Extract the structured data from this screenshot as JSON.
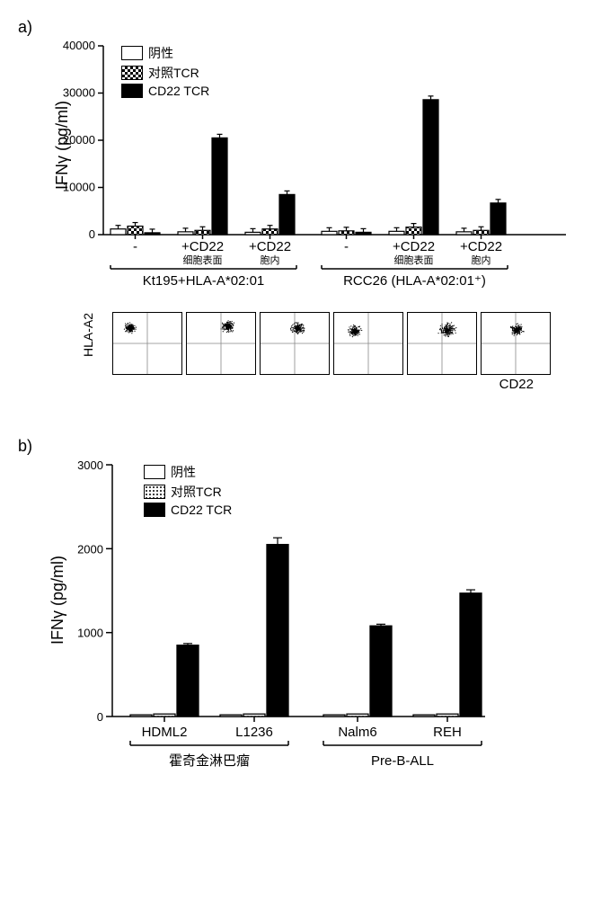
{
  "panel_a": {
    "label": "a)",
    "ylabel": "IFNγ (pg/ml)",
    "ylim": [
      0,
      40000
    ],
    "ytick_step": 10000,
    "yticks": [
      0,
      10000,
      20000,
      30000,
      40000
    ],
    "legend": {
      "neg": "阴性",
      "ctrl": "对照TCR",
      "cd22": "CD22 TCR"
    },
    "groups": [
      {
        "id": "kt195",
        "label": "Kt195+HLA-A*02:01",
        "conditions": [
          {
            "label": "-",
            "sub": "",
            "bars": [
              1200,
              1800,
              400
            ]
          },
          {
            "label": "+CD22",
            "sub": "细胞表面",
            "bars": [
              600,
              900,
              20500
            ]
          },
          {
            "label": "+CD22",
            "sub": "胞内",
            "bars": [
              500,
              1200,
              8500
            ]
          }
        ]
      },
      {
        "id": "rcc26",
        "label": "RCC26 (HLA-A*02:01⁺)",
        "conditions": [
          {
            "label": "-",
            "sub": "",
            "bars": [
              700,
              800,
              500
            ]
          },
          {
            "label": "+CD22",
            "sub": "细胞表面",
            "bars": [
              700,
              1600,
              28600
            ]
          },
          {
            "label": "+CD22",
            "sub": "胞内",
            "bars": [
              600,
              900,
              6700
            ]
          }
        ]
      }
    ],
    "bar_colors": {
      "neg": "#ffffff",
      "ctrl": "checker",
      "cd22": "#000000"
    },
    "flow": {
      "ylabel": "HLA-A2",
      "xlabel": "CD22",
      "plots": [
        {
          "cluster_x": 0.25,
          "cluster_y": 0.25,
          "spread": 0.12
        },
        {
          "cluster_x": 0.6,
          "cluster_y": 0.22,
          "spread": 0.14
        },
        {
          "cluster_x": 0.55,
          "cluster_y": 0.25,
          "spread": 0.14
        },
        {
          "cluster_x": 0.3,
          "cluster_y": 0.3,
          "spread": 0.13
        },
        {
          "cluster_x": 0.58,
          "cluster_y": 0.28,
          "spread": 0.18
        },
        {
          "cluster_x": 0.52,
          "cluster_y": 0.28,
          "spread": 0.15
        }
      ]
    }
  },
  "panel_b": {
    "label": "b)",
    "ylabel": "IFNγ (pg/ml)",
    "ylim": [
      0,
      3000
    ],
    "ytick_step": 1000,
    "yticks": [
      0,
      1000,
      2000,
      3000
    ],
    "legend": {
      "neg": "阴性",
      "ctrl": "对照TCR",
      "cd22": "CD22 TCR"
    },
    "groups": [
      {
        "id": "hodgkin",
        "label": "霍奇金淋巴瘤",
        "cells": [
          {
            "label": "HDML2",
            "bars": [
              20,
              30,
              850
            ],
            "err": [
              5,
              5,
              20
            ]
          },
          {
            "label": "L1236",
            "bars": [
              20,
              30,
              2050
            ],
            "err": [
              5,
              5,
              80
            ]
          }
        ]
      },
      {
        "id": "preball",
        "label": "Pre-B-ALL",
        "cells": [
          {
            "label": "Nalm6",
            "bars": [
              20,
              30,
              1080
            ],
            "err": [
              5,
              5,
              20
            ]
          },
          {
            "label": "REH",
            "bars": [
              20,
              30,
              1470
            ],
            "err": [
              5,
              5,
              40
            ]
          }
        ]
      }
    ]
  }
}
